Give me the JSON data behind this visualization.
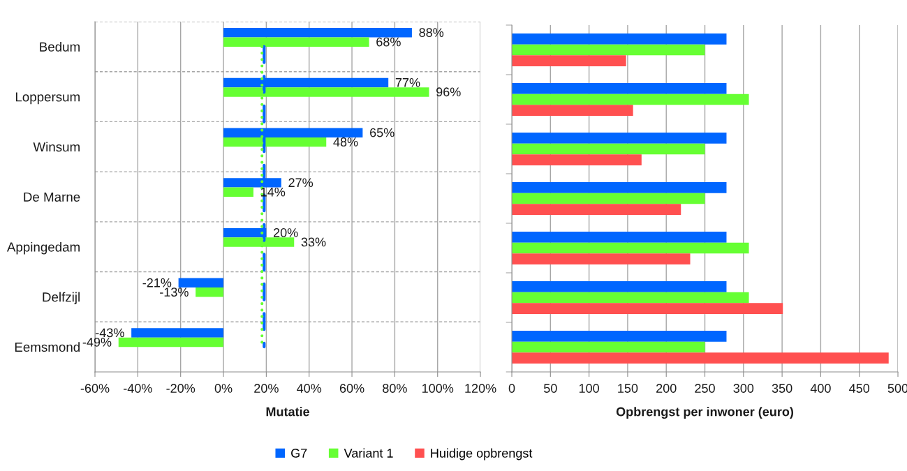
{
  "chart_data": [
    {
      "type": "bar",
      "orientation": "horizontal",
      "categories": [
        "Bedum",
        "Loppersum",
        "Winsum",
        "De Marne",
        "Appingedam",
        "Delfzijl",
        "Eemsmond"
      ],
      "series": [
        {
          "name": "G7",
          "color": "#0066ff",
          "values": [
            88,
            77,
            65,
            27,
            20,
            -21,
            -43
          ],
          "value_labels": [
            "88%",
            "77%",
            "65%",
            "27%",
            "20%",
            "-21%",
            "-43%"
          ]
        },
        {
          "name": "Variant 1",
          "color": "#66ff33",
          "values": [
            68,
            96,
            48,
            14,
            33,
            -13,
            -49
          ],
          "value_labels": [
            "68%",
            "96%",
            "48%",
            "14%",
            "33%",
            "-13%",
            "-49%"
          ]
        }
      ],
      "xlabel": "Mutatie",
      "xlim": [
        -60,
        120
      ],
      "xticks": [
        {
          "value": -60,
          "label": "-60%"
        },
        {
          "value": -40,
          "label": "-40%"
        },
        {
          "value": -20,
          "label": "-20%"
        },
        {
          "value": 0,
          "label": "0%"
        },
        {
          "value": 20,
          "label": "20%"
        },
        {
          "value": 40,
          "label": "40%"
        },
        {
          "value": 60,
          "label": "60%"
        },
        {
          "value": 80,
          "label": "80%"
        },
        {
          "value": 100,
          "label": "100%"
        },
        {
          "value": 120,
          "label": "120%"
        }
      ],
      "ref_lines": [
        {
          "axis": "x",
          "value": 19,
          "color": "#0066ff",
          "line_style": "dashed"
        },
        {
          "axis": "x",
          "value": 18,
          "color": "#66ff33",
          "line_style": "dotted"
        }
      ],
      "grid": true,
      "legend": "bottom"
    },
    {
      "type": "bar",
      "orientation": "horizontal",
      "categories": [
        null,
        null,
        null,
        null,
        null,
        null,
        null
      ],
      "tick_labels": "x",
      "series": [
        {
          "color": "#0066ff",
          "values": [
            278,
            278,
            278,
            278,
            278,
            278,
            278
          ]
        },
        {
          "color": "#66ff33",
          "values": [
            250,
            307,
            250,
            250,
            307,
            307,
            250
          ]
        },
        {
          "name": "Huidige opbrengst",
          "color": "#ff5050",
          "values": [
            148,
            157,
            168,
            219,
            231,
            351,
            488
          ]
        }
      ],
      "xlabel": "Opbrengst per inwoner (euro)",
      "xlim": [
        0,
        500
      ],
      "xticks": [
        0,
        50,
        100,
        150,
        200,
        250,
        300,
        350,
        400,
        450,
        500
      ],
      "grid": "x",
      "legend": "bottom"
    }
  ]
}
